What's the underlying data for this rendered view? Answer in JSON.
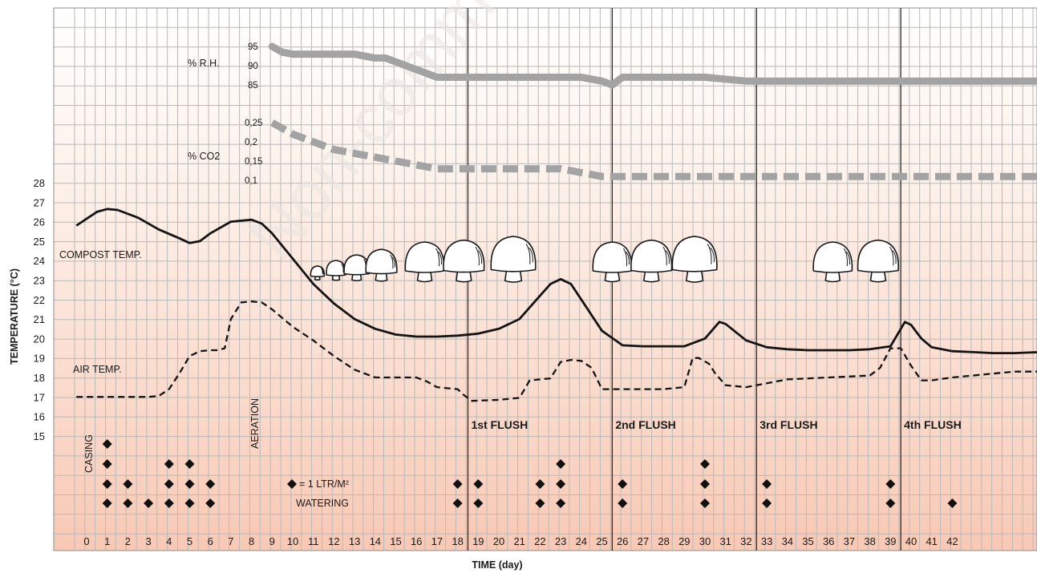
{
  "chart_data": {
    "type": "line",
    "xlabel": "TIME (day)",
    "ylabel": "TEMPERATURE (°C)",
    "x_ticks": [
      0,
      1,
      2,
      3,
      4,
      5,
      6,
      7,
      8,
      9,
      10,
      11,
      12,
      13,
      14,
      15,
      16,
      17,
      18,
      19,
      20,
      21,
      22,
      23,
      24,
      25,
      26,
      27,
      28,
      29,
      30,
      31,
      32,
      33,
      34,
      35,
      36,
      37,
      38,
      39,
      40,
      41,
      42
    ],
    "y_ticks": [
      15,
      16,
      17,
      18,
      19,
      20,
      21,
      22,
      23,
      24,
      25,
      26,
      27,
      28
    ],
    "xlim": [
      -1.5,
      46.2
    ],
    "ylim": [
      13.5,
      28
    ],
    "series": [
      {
        "name": "COMPOST TEMP.",
        "style": "solid",
        "x": [
          -0.5,
          0.5,
          1,
          1.5,
          2.5,
          3.5,
          4.5,
          5,
          5.5,
          6,
          7,
          8,
          8.5,
          9,
          10,
          11,
          12,
          13,
          14,
          15,
          16,
          17,
          18,
          19,
          20,
          21,
          22,
          22.5,
          23,
          23.5,
          24,
          25,
          26,
          27,
          28,
          29,
          30,
          30.7,
          31,
          32,
          33,
          34,
          35,
          36,
          37,
          38,
          39,
          39.7,
          40,
          40.5,
          41,
          42,
          43,
          44,
          45,
          46.2
        ],
        "y": [
          25.8,
          26.5,
          26.65,
          26.6,
          26.2,
          25.6,
          25.15,
          24.9,
          25.0,
          25.4,
          26.0,
          26.1,
          25.9,
          25.4,
          24.1,
          22.8,
          21.8,
          21.0,
          20.5,
          20.2,
          20.1,
          20.1,
          20.15,
          20.25,
          20.5,
          21.0,
          22.2,
          22.8,
          23.05,
          22.8,
          22.0,
          20.4,
          19.65,
          19.6,
          19.6,
          19.6,
          20.0,
          20.85,
          20.75,
          19.9,
          19.55,
          19.45,
          19.4,
          19.4,
          19.4,
          19.45,
          19.6,
          20.85,
          20.7,
          20.0,
          19.55,
          19.35,
          19.3,
          19.25,
          19.25,
          19.3
        ]
      },
      {
        "name": "AIR TEMP.",
        "style": "dashed",
        "x": [
          -0.5,
          1,
          2,
          3,
          3.5,
          4,
          4.5,
          5,
          5.5,
          6,
          6.3,
          6.7,
          7,
          7.5,
          8,
          8.5,
          9,
          10,
          11,
          12,
          13,
          14,
          15,
          16,
          16.5,
          17,
          18,
          18.3,
          18.7,
          20,
          21,
          21.5,
          22,
          22.5,
          23,
          23.5,
          24,
          24.5,
          25,
          26,
          27,
          28,
          29,
          29.4,
          29.7,
          30.2,
          30.5,
          31,
          32,
          33,
          34,
          35,
          36,
          37,
          38,
          38.5,
          39,
          39.5,
          40,
          40.5,
          41,
          42,
          43,
          44,
          45,
          46.2
        ],
        "y": [
          17,
          17,
          17,
          17,
          17.05,
          17.4,
          18.2,
          19.1,
          19.35,
          19.4,
          19.4,
          19.5,
          21.0,
          21.85,
          21.9,
          21.85,
          21.5,
          20.6,
          19.9,
          19.1,
          18.4,
          18.0,
          18.0,
          18.0,
          17.8,
          17.5,
          17.4,
          17.1,
          16.8,
          16.85,
          16.95,
          17.85,
          17.9,
          17.95,
          18.8,
          18.9,
          18.85,
          18.5,
          17.4,
          17.4,
          17.4,
          17.4,
          17.5,
          19.0,
          19.0,
          18.7,
          18.2,
          17.6,
          17.5,
          17.7,
          17.9,
          17.95,
          18.0,
          18.05,
          18.1,
          18.5,
          19.5,
          19.5,
          18.6,
          17.85,
          17.85,
          18.0,
          18.1,
          18.2,
          18.3,
          18.3
        ]
      },
      {
        "name": "% R.H.",
        "style": "thick",
        "x": [
          9,
          9.5,
          10,
          11,
          12,
          13,
          14,
          14.5,
          15,
          16,
          17,
          18,
          19,
          20,
          21,
          22,
          23,
          24,
          25,
          25.5,
          26,
          27,
          28,
          29,
          30,
          31,
          32,
          33,
          34,
          35,
          36,
          37,
          38,
          39,
          40,
          41,
          42,
          43,
          44,
          45,
          46.2
        ],
        "y": [
          95,
          93.5,
          93,
          93,
          93,
          93,
          92,
          92,
          91,
          89,
          87,
          87,
          87,
          87,
          87,
          87,
          87,
          87,
          86,
          85,
          87,
          87,
          87,
          87,
          87,
          86.5,
          86,
          86,
          86,
          86,
          86,
          86,
          86,
          86,
          86,
          86,
          86,
          86,
          86,
          86,
          86
        ]
      },
      {
        "name": "% CO2",
        "style": "thick-dashed",
        "x": [
          9,
          10,
          11,
          12,
          13,
          14,
          15,
          16,
          17,
          18,
          19,
          20,
          21,
          22,
          23,
          24,
          25,
          26,
          27,
          28,
          29,
          30,
          31,
          32,
          33,
          34,
          35,
          36,
          37,
          38,
          39,
          40,
          41,
          42,
          43,
          44,
          45,
          46.2
        ],
        "y": [
          0.25,
          0.22,
          0.2,
          0.18,
          0.17,
          0.16,
          0.15,
          0.14,
          0.13,
          0.13,
          0.13,
          0.13,
          0.13,
          0.13,
          0.13,
          0.12,
          0.11,
          0.11,
          0.11,
          0.11,
          0.11,
          0.11,
          0.11,
          0.11,
          0.11,
          0.11,
          0.11,
          0.11,
          0.11,
          0.11,
          0.11,
          0.11,
          0.11,
          0.11,
          0.11,
          0.11,
          0.11,
          0.11
        ]
      }
    ],
    "rh_ticks": [
      95,
      90,
      85
    ],
    "co2_ticks": [
      "0,25",
      "0,2",
      "0,15",
      "0,1"
    ],
    "labels": {
      "compost": "COMPOST TEMP.",
      "air": "AIR TEMP.",
      "rh": "% R.H.",
      "co2": "% CO2",
      "casing": "CASING",
      "aeration": "AERATION",
      "watering_unit": "= 1 LTR/M²",
      "watering": "WATERING"
    },
    "flushes": [
      {
        "label": "1st FLUSH",
        "day": 18
      },
      {
        "label": "2nd FLUSH",
        "day": 25
      },
      {
        "label": "3rd FLUSH",
        "day": 32
      },
      {
        "label": "4th FLUSH",
        "day": 39
      }
    ],
    "watering_events": [
      {
        "day": 1,
        "count": 4
      },
      {
        "day": 2,
        "count": 2
      },
      {
        "day": 3,
        "count": 1
      },
      {
        "day": 4,
        "count": 3
      },
      {
        "day": 5,
        "count": 3
      },
      {
        "day": 6,
        "count": 2
      },
      {
        "day": 18,
        "count": 2
      },
      {
        "day": 19,
        "count": 2
      },
      {
        "day": 22,
        "count": 2
      },
      {
        "day": 23,
        "count": 3
      },
      {
        "day": 26,
        "count": 2
      },
      {
        "day": 30,
        "count": 3
      },
      {
        "day": 33,
        "count": 2
      },
      {
        "day": 39,
        "count": 2
      },
      {
        "day": 42,
        "count": 1
      }
    ],
    "mushroom_days": [
      11.2,
      12.1,
      13.1,
      14.3,
      16.4,
      18.3,
      20.7,
      25.5,
      27.4,
      29.5,
      36.2,
      38.4
    ],
    "watermark": "Non-commercial",
    "colors": {
      "grid": "#b9b9b9",
      "line": "#141414",
      "rh_co2": "#a3a3a3",
      "bg_top": "#ffffff",
      "bg_bottom": "#f9ccb8"
    }
  }
}
